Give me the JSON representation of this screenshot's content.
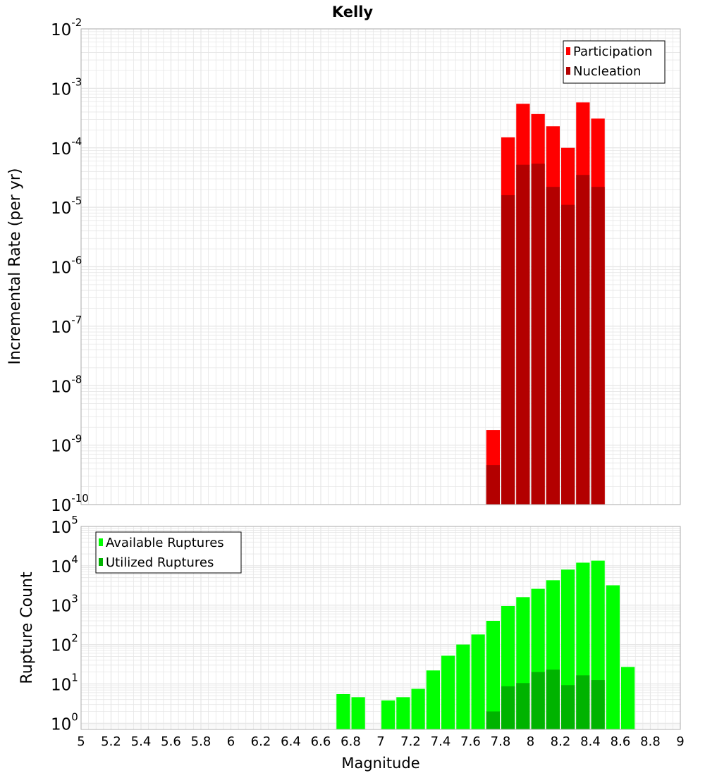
{
  "title": "Kelly",
  "xlabel": "Magnitude",
  "x_ticks": [
    "5",
    "5.2",
    "5.4",
    "5.6",
    "5.8",
    "6",
    "6.2",
    "6.4",
    "6.6",
    "6.8",
    "7",
    "7.2",
    "7.4",
    "7.6",
    "7.8",
    "8",
    "8.2",
    "8.4",
    "8.6",
    "8.8",
    "9"
  ],
  "colors": {
    "participation": "#ff0000",
    "nucleation": "#b30000",
    "available": "#00ff00",
    "utilized": "#00b300",
    "grid": "#e6e6e6",
    "frame": "#b0b0b0"
  },
  "chart_data": [
    {
      "type": "bar",
      "title": "Kelly",
      "xlabel": "Magnitude",
      "ylabel": "Incremental Rate (per yr)",
      "yscale": "log",
      "xlim": [
        5,
        9
      ],
      "ylim": [
        1e-10,
        0.01
      ],
      "y_ticks": [
        {
          "base": "10",
          "exp": "-10"
        },
        {
          "base": "10",
          "exp": "-9"
        },
        {
          "base": "10",
          "exp": "-8"
        },
        {
          "base": "10",
          "exp": "-7"
        },
        {
          "base": "10",
          "exp": "-6"
        },
        {
          "base": "10",
          "exp": "-5"
        },
        {
          "base": "10",
          "exp": "-4"
        },
        {
          "base": "10",
          "exp": "-3"
        },
        {
          "base": "10",
          "exp": "-2"
        }
      ],
      "legend_position": "top-right",
      "bin_centers": [
        7.75,
        7.85,
        7.95,
        8.05,
        8.15,
        8.25,
        8.35,
        8.45
      ],
      "series": [
        {
          "name": "Participation",
          "values": [
            1.8e-09,
            0.00015,
            0.00055,
            0.00037,
            0.00023,
            0.0001,
            0.00058,
            0.00031
          ]
        },
        {
          "name": "Nucleation",
          "values": [
            4.6e-10,
            1.6e-05,
            5.2e-05,
            5.4e-05,
            2.2e-05,
            1.1e-05,
            3.5e-05,
            2.2e-05
          ]
        }
      ]
    },
    {
      "type": "bar",
      "xlabel": "Magnitude",
      "ylabel": "Rupture Count",
      "yscale": "log",
      "xlim": [
        5,
        9
      ],
      "ylim": [
        0.7,
        100000
      ],
      "y_ticks": [
        {
          "base": "10",
          "exp": "0"
        },
        {
          "base": "10",
          "exp": "1"
        },
        {
          "base": "10",
          "exp": "2"
        },
        {
          "base": "10",
          "exp": "3"
        },
        {
          "base": "10",
          "exp": "4"
        },
        {
          "base": "10",
          "exp": "5"
        }
      ],
      "legend_position": "top-left",
      "bin_centers": [
        6.75,
        6.85,
        6.95,
        7.05,
        7.15,
        7.25,
        7.35,
        7.45,
        7.55,
        7.65,
        7.75,
        7.85,
        7.95,
        8.05,
        8.15,
        8.25,
        8.35,
        8.45,
        8.55,
        8.65
      ],
      "series": [
        {
          "name": "Available Ruptures",
          "values": [
            5.5,
            4.6,
            null,
            3.8,
            4.6,
            7.5,
            22,
            52,
            100,
            180,
            400,
            950,
            1600,
            2600,
            4300,
            8000,
            12000,
            13500,
            3200,
            27
          ]
        },
        {
          "name": "Utilized Ruptures",
          "values": [
            null,
            null,
            null,
            null,
            null,
            null,
            null,
            null,
            null,
            null,
            2,
            8.7,
            10.5,
            20,
            23,
            9.3,
            16.5,
            12.5,
            null,
            null
          ]
        }
      ]
    }
  ]
}
